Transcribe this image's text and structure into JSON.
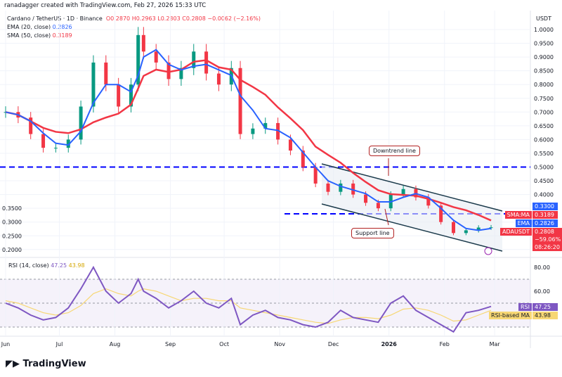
{
  "credit": "ranadagger created with TradingView.com, Feb 27, 2026 15:33 UTC",
  "legend": {
    "symbol": "Cardano / TetherUS · 1D · Binance",
    "o": "O0.2870",
    "h": "H0.2963",
    "l": "L0.2803",
    "c": "C0.2808",
    "chg": "−0.0062 (−2.16%)",
    "ema": "EMA (20, close)",
    "ema_val": "0.2826",
    "sma": "SMA (50, close)",
    "sma_val": "0.3189",
    "rsi": "RSI (14, close)",
    "rsi_val": "47.25",
    "rsi_ma_val": "43.98"
  },
  "currency": "USDT",
  "tags": {
    "level": "0.3300",
    "sma_label": "SMA:MA",
    "sma": "0.3189",
    "ema_label": "EMA",
    "ema": "0.2826",
    "sym": "ADAUSDT",
    "price": "0.2808",
    "pct": "−59.06%",
    "countdown": "08:26:20",
    "rsi_label": "RSI",
    "rsi": "47.25",
    "rsima_label": "RSI-based MA",
    "rsima": "43.98"
  },
  "annotations": {
    "downtrend": "Downtrend line",
    "support": "Support line"
  },
  "logo": "TradingView",
  "colors": {
    "ema": "#2962ff",
    "sma": "#f23645",
    "rsi": "#7e57c2",
    "rsi_ma": "#f7d774",
    "up": "#089981",
    "down": "#f23645",
    "hline": "#0000ff"
  },
  "chart_data": [
    {
      "type": "line",
      "title": "Cardano / TetherUS · 1D · Binance",
      "x_ticks": [
        "Jun",
        "Jul",
        "Aug",
        "Sep",
        "Oct",
        "Nov",
        "Dec",
        "2026",
        "Feb",
        "Mar"
      ],
      "y_ticks": [
        "1.0000",
        "0.9500",
        "0.9000",
        "0.8500",
        "0.8000",
        "0.7500",
        "0.7000",
        "0.6500",
        "0.6000",
        "0.5500",
        "0.5000",
        "0.4500",
        "0.4000",
        "0.3500",
        "0.3000",
        "0.2500",
        "0.2000"
      ],
      "ylim": [
        0.18,
        1.03
      ],
      "x": [
        "2025-06-01",
        "2025-06-08",
        "2025-06-15",
        "2025-06-22",
        "2025-06-29",
        "2025-07-06",
        "2025-07-13",
        "2025-07-20",
        "2025-07-27",
        "2025-08-03",
        "2025-08-10",
        "2025-08-14",
        "2025-08-17",
        "2025-08-24",
        "2025-08-31",
        "2025-09-07",
        "2025-09-14",
        "2025-09-21",
        "2025-09-28",
        "2025-10-05",
        "2025-10-10",
        "2025-10-17",
        "2025-10-24",
        "2025-10-31",
        "2025-11-07",
        "2025-11-14",
        "2025-11-21",
        "2025-11-28",
        "2025-12-05",
        "2025-12-12",
        "2025-12-19",
        "2025-12-26",
        "2026-01-02",
        "2026-01-09",
        "2026-01-16",
        "2026-01-23",
        "2026-01-30",
        "2026-02-06",
        "2026-02-13",
        "2026-02-20",
        "2026-02-27"
      ],
      "close": [
        0.7,
        0.68,
        0.62,
        0.57,
        0.57,
        0.6,
        0.72,
        0.88,
        0.8,
        0.72,
        0.8,
        0.98,
        0.92,
        0.88,
        0.82,
        0.86,
        0.92,
        0.84,
        0.8,
        0.86,
        0.62,
        0.64,
        0.66,
        0.6,
        0.56,
        0.5,
        0.44,
        0.41,
        0.44,
        0.4,
        0.37,
        0.35,
        0.4,
        0.42,
        0.39,
        0.36,
        0.3,
        0.26,
        0.27,
        0.28,
        0.2808
      ],
      "hlines": [
        0.5,
        0.33
      ]
    },
    {
      "type": "line",
      "title": "RSI (14, close)",
      "y_ticks": [
        "80.00",
        "60.00"
      ],
      "ylim": [
        20,
        85
      ],
      "rsi": [
        50,
        46,
        40,
        36,
        38,
        46,
        62,
        80,
        60,
        50,
        58,
        70,
        60,
        54,
        46,
        52,
        60,
        50,
        46,
        54,
        32,
        40,
        44,
        38,
        36,
        32,
        30,
        34,
        44,
        38,
        36,
        34,
        50,
        56,
        44,
        38,
        32,
        26,
        42,
        44,
        47.25
      ],
      "rsi_ma": [
        52,
        50,
        46,
        42,
        40,
        42,
        48,
        58,
        62,
        58,
        56,
        60,
        62,
        60,
        56,
        52,
        54,
        54,
        52,
        52,
        46,
        44,
        42,
        40,
        38,
        36,
        34,
        33,
        36,
        38,
        38,
        37,
        40,
        45,
        46,
        44,
        40,
        35,
        36,
        40,
        43.98
      ]
    }
  ]
}
